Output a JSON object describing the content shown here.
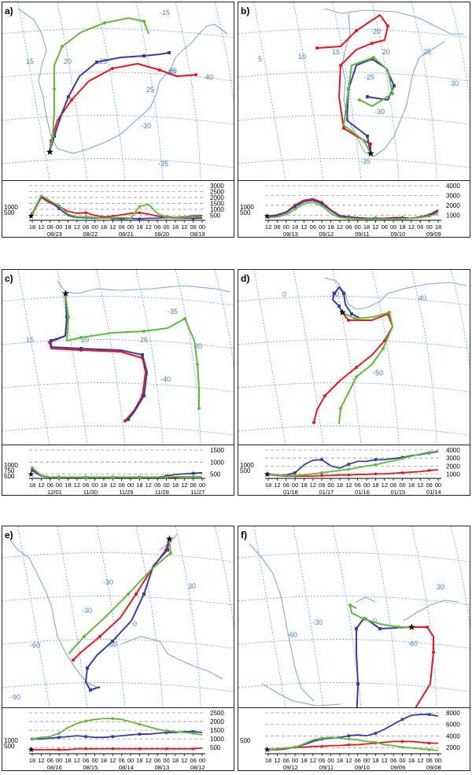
{
  "colors": {
    "red": "#e8161e",
    "blue": "#3a3da6",
    "green": "#5fba3a",
    "coast": "#7fa9d4",
    "grid": "#6a9fd8",
    "gridlbl": "#4a7fc0",
    "dash": "#999999"
  },
  "panels": [
    {
      "label": "a)",
      "map_labels": [
        "-15",
        "15",
        "20",
        "25",
        "30",
        "25",
        "35",
        "40",
        "-30",
        "-35"
      ],
      "y_ticks": [
        "3000",
        "2500",
        "2000",
        "1500",
        "1000",
        "500"
      ],
      "left_ticks": [
        "1000",
        "500"
      ],
      "hours": [
        "18",
        "12",
        "06",
        "00",
        "18",
        "12",
        "06",
        "00",
        "18",
        "12",
        "06",
        "00",
        "18",
        "12",
        "06",
        "00",
        "18",
        "12",
        "06",
        "00"
      ],
      "dates": [
        "08/23",
        "08/22",
        "08/21",
        "08/20",
        "08/19"
      ]
    },
    {
      "label": "b)",
      "map_labels": [
        "-20",
        "15",
        "10",
        "5",
        "20",
        "25",
        "-25",
        "30",
        "-30",
        "-35"
      ],
      "y_ticks": [
        "4000",
        "3000",
        "2000",
        "1000"
      ],
      "left_ticks": [
        "1000",
        "500"
      ],
      "hours": [
        "12",
        "06",
        "00",
        "18",
        "12",
        "06",
        "00",
        "18",
        "12",
        "06",
        "00",
        "18",
        "12",
        "06",
        "00",
        "18",
        "12",
        "06",
        "00",
        "18"
      ],
      "dates": [
        "09/13",
        "09/12",
        "09/11",
        "09/10",
        "09/09"
      ]
    },
    {
      "label": "c)",
      "map_labels": [
        "-35",
        "15",
        "20",
        "25",
        "30",
        "-40"
      ],
      "y_ticks": [
        "1500",
        "1000",
        "500"
      ],
      "left_ticks": [
        "1000",
        "750",
        "500"
      ],
      "hours": [
        "18",
        "12",
        "06",
        "00",
        "18",
        "12",
        "06",
        "00",
        "18",
        "12",
        "06",
        "00",
        "18",
        "12",
        "06",
        "00",
        "18",
        "12",
        "06",
        "00"
      ],
      "dates": [
        "12/01",
        "11/30",
        "11/29",
        "11/28",
        "11/27"
      ]
    },
    {
      "label": "d)",
      "map_labels": [
        "0",
        "20",
        "40",
        "-50"
      ],
      "y_ticks": [
        "4000",
        "3000",
        "2000",
        "1000"
      ],
      "left_ticks": [
        "1000",
        "500"
      ],
      "hours": [
        "18",
        "12",
        "06",
        "00",
        "18",
        "12",
        "06",
        "00",
        "18",
        "12",
        "06",
        "00",
        "18",
        "12",
        "06",
        "00",
        "18",
        "12",
        "06",
        "00"
      ],
      "dates": [
        "01/18",
        "01/17",
        "01/16",
        "01/15",
        "01/14"
      ]
    },
    {
      "label": "e)",
      "map_labels": [
        "-30",
        "30",
        "-30",
        "0",
        "-60",
        "-60",
        "-90"
      ],
      "y_ticks": [
        "2500",
        "2000",
        "1500",
        "1000",
        "500"
      ],
      "left_ticks": [
        "1000",
        "500"
      ],
      "hours": [
        "18",
        "12",
        "06",
        "00",
        "18",
        "12",
        "06",
        "00",
        "18",
        "12",
        "06",
        "00",
        "18",
        "12",
        "06",
        "00",
        "18",
        "12",
        "06",
        "00"
      ],
      "dates": [
        "08/16",
        "08/15",
        "08/14",
        "08/13",
        "08/12"
      ]
    },
    {
      "label": "f)",
      "map_labels": [
        "30",
        "-30",
        "0",
        "-60",
        "-60"
      ],
      "y_ticks": [
        "8000",
        "6000",
        "4000",
        "2000"
      ],
      "left_ticks": [
        "500"
      ],
      "hours": [
        "18",
        "12",
        "06",
        "00",
        "18",
        "12",
        "06",
        "00",
        "18",
        "12",
        "06",
        "00",
        "18",
        "12",
        "06",
        "00",
        "18",
        "12",
        "06",
        "00"
      ],
      "dates": [
        "09/12",
        "09/11",
        "09/10",
        "09/09",
        "09/08"
      ]
    }
  ]
}
